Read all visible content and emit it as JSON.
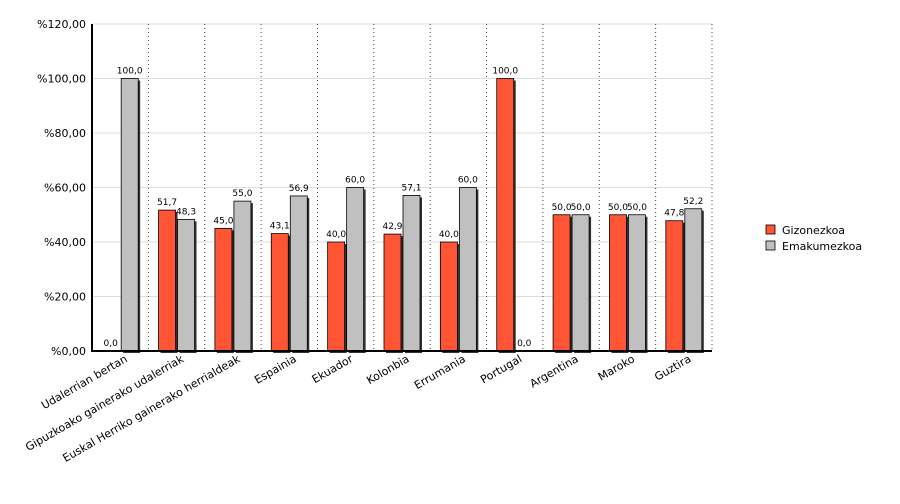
{
  "chart_data": {
    "type": "bar",
    "categories": [
      "Udalerrian bertan",
      "Gipuzkoako gainerako udalerriak",
      "Euskal Herriko gainerako herrialdeak",
      "Espainia",
      "Ekuador",
      "Kolonbia",
      "Errumania",
      "Portugal",
      "Argentina",
      "Maroko",
      "Guztira"
    ],
    "series": [
      {
        "name": "Gizonezkoa",
        "color": "#ff5535",
        "values": [
          0,
          51.7,
          45.0,
          43.1,
          40.0,
          42.9,
          40.0,
          100.0,
          50.0,
          50.0,
          47.8
        ],
        "value_labels": [
          "0,0",
          "51,7",
          "45,0",
          "43,1",
          "40,0",
          "42,9",
          "40,0",
          "100,0",
          "50,0",
          "50,0",
          "47,8"
        ]
      },
      {
        "name": "Emakumezkoa",
        "color": "#c0c0c0",
        "values": [
          100.0,
          48.3,
          55.0,
          56.9,
          60.0,
          57.1,
          60.0,
          0,
          50.0,
          50.0,
          52.2
        ],
        "value_labels": [
          "100,0",
          "48,3",
          "55,0",
          "56,9",
          "60,0",
          "57,1",
          "60,0",
          "0,0",
          "50,0",
          "50,0",
          "52,2"
        ]
      }
    ],
    "ylim": [
      0,
      120
    ],
    "yticks": [
      {
        "value": 0,
        "label": "%0,00"
      },
      {
        "value": 20,
        "label": "%20,00"
      },
      {
        "value": 40,
        "label": "%40,00"
      },
      {
        "value": 60,
        "label": "%60,00"
      },
      {
        "value": 80,
        "label": "%80,00"
      },
      {
        "value": 100,
        "label": "%100,00"
      },
      {
        "value": 120,
        "label": "%120,00"
      }
    ],
    "grid": true,
    "legend": "right"
  }
}
